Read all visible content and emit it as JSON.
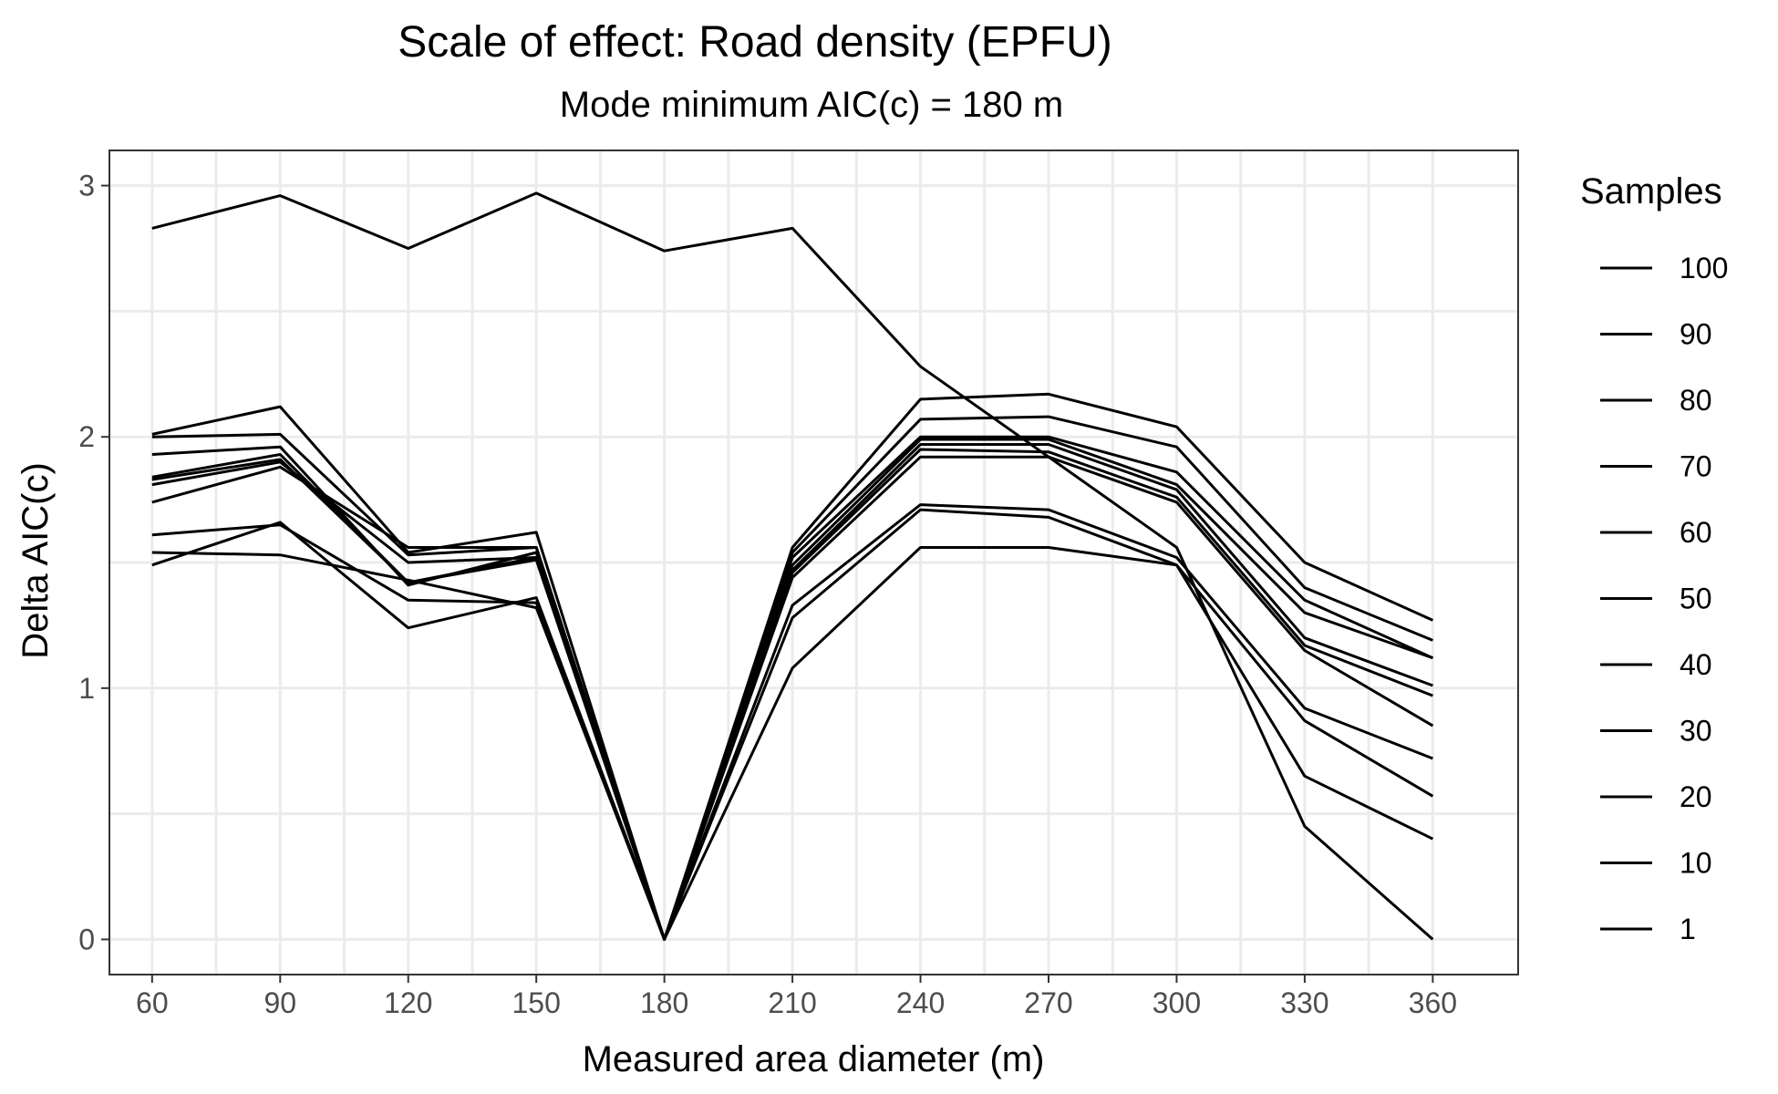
{
  "chart_data": {
    "type": "line",
    "title": "Scale of effect: Road density (EPFU)",
    "subtitle": "Mode minimum AIC(c) = 180 m",
    "xlabel": "Measured area diameter (m)",
    "ylabel": "Delta AIC(c)",
    "x": [
      60,
      90,
      120,
      150,
      180,
      210,
      240,
      270,
      300,
      330,
      360
    ],
    "xlim": [
      50,
      380
    ],
    "ylim": [
      -0.14,
      3.14
    ],
    "xticks": [
      "60",
      "90",
      "120",
      "150",
      "180",
      "210",
      "240",
      "270",
      "300",
      "330",
      "360"
    ],
    "yticks": [
      "0",
      "1",
      "2",
      "3"
    ],
    "grid": true,
    "legend": {
      "title": "Samples",
      "position": "right",
      "entries": [
        "100",
        "90",
        "80",
        "70",
        "60",
        "50",
        "40",
        "30",
        "20",
        "10",
        "1"
      ]
    },
    "series": [
      {
        "name": "1",
        "values": [
          2.83,
          2.96,
          2.75,
          2.97,
          2.74,
          2.83,
          2.28,
          1.92,
          1.56,
          0.45,
          0.0
        ]
      },
      {
        "name": "10",
        "values": [
          1.49,
          1.66,
          1.24,
          1.36,
          0.0,
          1.08,
          1.56,
          1.56,
          1.49,
          0.65,
          0.4
        ]
      },
      {
        "name": "20",
        "values": [
          1.54,
          1.53,
          1.43,
          1.32,
          0.0,
          1.28,
          1.71,
          1.68,
          1.49,
          0.87,
          0.57
        ]
      },
      {
        "name": "30",
        "values": [
          1.61,
          1.65,
          1.35,
          1.34,
          0.0,
          1.33,
          1.73,
          1.71,
          1.52,
          0.92,
          0.72
        ]
      },
      {
        "name": "40",
        "values": [
          1.74,
          1.88,
          1.56,
          1.56,
          0.0,
          1.44,
          1.92,
          1.92,
          1.74,
          1.15,
          0.85
        ]
      },
      {
        "name": "50",
        "values": [
          1.81,
          1.9,
          1.5,
          1.52,
          0.0,
          1.46,
          1.95,
          1.94,
          1.76,
          1.17,
          0.97
        ]
      },
      {
        "name": "60",
        "values": [
          1.83,
          1.91,
          1.42,
          1.51,
          0.0,
          1.47,
          1.97,
          1.97,
          1.79,
          1.2,
          1.01
        ]
      },
      {
        "name": "70",
        "values": [
          1.84,
          1.93,
          1.42,
          1.52,
          0.0,
          1.49,
          1.99,
          1.99,
          1.81,
          1.3,
          1.12
        ]
      },
      {
        "name": "80",
        "values": [
          1.93,
          1.96,
          1.41,
          1.54,
          0.0,
          1.52,
          2.0,
          2.0,
          1.86,
          1.35,
          1.12
        ]
      },
      {
        "name": "90",
        "values": [
          2.0,
          2.01,
          1.53,
          1.56,
          0.0,
          1.54,
          2.07,
          2.08,
          1.96,
          1.4,
          1.19
        ]
      },
      {
        "name": "100",
        "values": [
          2.01,
          2.12,
          1.54,
          1.62,
          0.0,
          1.56,
          2.15,
          2.17,
          2.04,
          1.5,
          1.27
        ]
      }
    ]
  }
}
